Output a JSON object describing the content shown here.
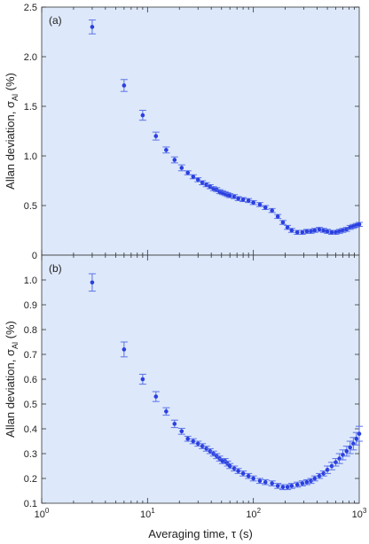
{
  "chart_data": [
    {
      "type": "scatter",
      "panel_label": "(a)",
      "ylabel_main": "Allan deviation, σ",
      "ylabel_sub": "Al",
      "ylabel_unit": "(%)",
      "xlabel": "",
      "xscale": "log",
      "xlim": [
        1,
        1000
      ],
      "ylim": [
        0,
        2.5
      ],
      "yticks": [
        "0",
        "0.5",
        "1.0",
        "1.5",
        "2.0",
        "2.5"
      ],
      "yticks_values": [
        0,
        0.5,
        1.0,
        1.5,
        2.0,
        2.5
      ],
      "xticks": [],
      "background": "#dde8fa",
      "marker_color": "#2b3fe0",
      "series": [
        {
          "x": [
            3,
            6,
            9,
            12,
            15,
            18,
            21,
            24,
            27,
            30,
            33,
            36,
            39,
            42,
            45,
            48,
            51,
            54,
            57,
            60,
            66,
            72,
            80,
            90,
            100,
            115,
            130,
            150,
            170,
            190,
            210,
            230,
            260,
            290,
            320,
            350,
            380,
            420,
            460,
            500,
            550,
            600,
            650,
            700,
            760,
            820,
            880,
            940,
            1000
          ],
          "y": [
            2.3,
            1.71,
            1.41,
            1.2,
            1.06,
            0.96,
            0.88,
            0.83,
            0.79,
            0.76,
            0.73,
            0.71,
            0.69,
            0.67,
            0.66,
            0.64,
            0.63,
            0.62,
            0.61,
            0.6,
            0.59,
            0.57,
            0.56,
            0.55,
            0.53,
            0.51,
            0.48,
            0.45,
            0.39,
            0.33,
            0.28,
            0.25,
            0.23,
            0.23,
            0.24,
            0.24,
            0.25,
            0.26,
            0.25,
            0.24,
            0.23,
            0.23,
            0.24,
            0.25,
            0.26,
            0.28,
            0.29,
            0.3,
            0.31
          ],
          "err": [
            0.07,
            0.06,
            0.05,
            0.04,
            0.03,
            0.03,
            0.03,
            0.02,
            0.02,
            0.02,
            0.02,
            0.02,
            0.02,
            0.02,
            0.02,
            0.02,
            0.02,
            0.02,
            0.02,
            0.02,
            0.02,
            0.02,
            0.02,
            0.02,
            0.02,
            0.02,
            0.02,
            0.02,
            0.02,
            0.02,
            0.02,
            0.02,
            0.02,
            0.02,
            0.02,
            0.02,
            0.02,
            0.02,
            0.02,
            0.02,
            0.02,
            0.02,
            0.02,
            0.02,
            0.02,
            0.02,
            0.02,
            0.02,
            0.02
          ]
        }
      ]
    },
    {
      "type": "scatter",
      "panel_label": "(b)",
      "ylabel_main": "Allan deviation, σ",
      "ylabel_sub": "Al",
      "ylabel_unit": "(%)",
      "xlabel": "Averaging time, τ (s)",
      "xscale": "log",
      "xlim": [
        1,
        1000
      ],
      "ylim": [
        0.1,
        1.1
      ],
      "yticks": [
        "0.1",
        "0.2",
        "0.3",
        "0.4",
        "0.5",
        "0.6",
        "0.7",
        "0.8",
        "0.9",
        "1.0"
      ],
      "yticks_values": [
        0.1,
        0.2,
        0.3,
        0.4,
        0.5,
        0.6,
        0.7,
        0.8,
        0.9,
        1.0
      ],
      "xticks": [
        "10",
        "10",
        "10",
        "10"
      ],
      "xticks_exp": [
        "0",
        "1",
        "2",
        "3"
      ],
      "xticks_values": [
        1,
        10,
        100,
        1000
      ],
      "background": "#dde8fa",
      "marker_color": "#2b3fe0",
      "series": [
        {
          "x": [
            3,
            6,
            9,
            12,
            15,
            18,
            21,
            24,
            27,
            30,
            33,
            36,
            39,
            42,
            45,
            48,
            51,
            54,
            57,
            60,
            66,
            72,
            80,
            90,
            100,
            115,
            130,
            150,
            170,
            190,
            210,
            230,
            260,
            290,
            320,
            350,
            380,
            420,
            460,
            500,
            550,
            600,
            650,
            700,
            760,
            820,
            880,
            940,
            1000
          ],
          "y": [
            0.99,
            0.72,
            0.6,
            0.53,
            0.47,
            0.42,
            0.39,
            0.36,
            0.35,
            0.34,
            0.33,
            0.32,
            0.31,
            0.3,
            0.29,
            0.28,
            0.27,
            0.27,
            0.26,
            0.25,
            0.24,
            0.23,
            0.22,
            0.21,
            0.2,
            0.19,
            0.185,
            0.18,
            0.17,
            0.165,
            0.165,
            0.17,
            0.175,
            0.18,
            0.185,
            0.19,
            0.2,
            0.21,
            0.22,
            0.235,
            0.25,
            0.265,
            0.28,
            0.295,
            0.31,
            0.325,
            0.34,
            0.36,
            0.38
          ],
          "err": [
            0.035,
            0.03,
            0.02,
            0.02,
            0.015,
            0.015,
            0.012,
            0.01,
            0.01,
            0.01,
            0.01,
            0.01,
            0.01,
            0.01,
            0.01,
            0.01,
            0.01,
            0.01,
            0.01,
            0.01,
            0.01,
            0.01,
            0.01,
            0.01,
            0.01,
            0.01,
            0.01,
            0.01,
            0.01,
            0.01,
            0.01,
            0.01,
            0.01,
            0.01,
            0.01,
            0.01,
            0.01,
            0.01,
            0.01,
            0.015,
            0.015,
            0.015,
            0.02,
            0.02,
            0.02,
            0.025,
            0.025,
            0.025,
            0.03
          ]
        }
      ]
    }
  ]
}
